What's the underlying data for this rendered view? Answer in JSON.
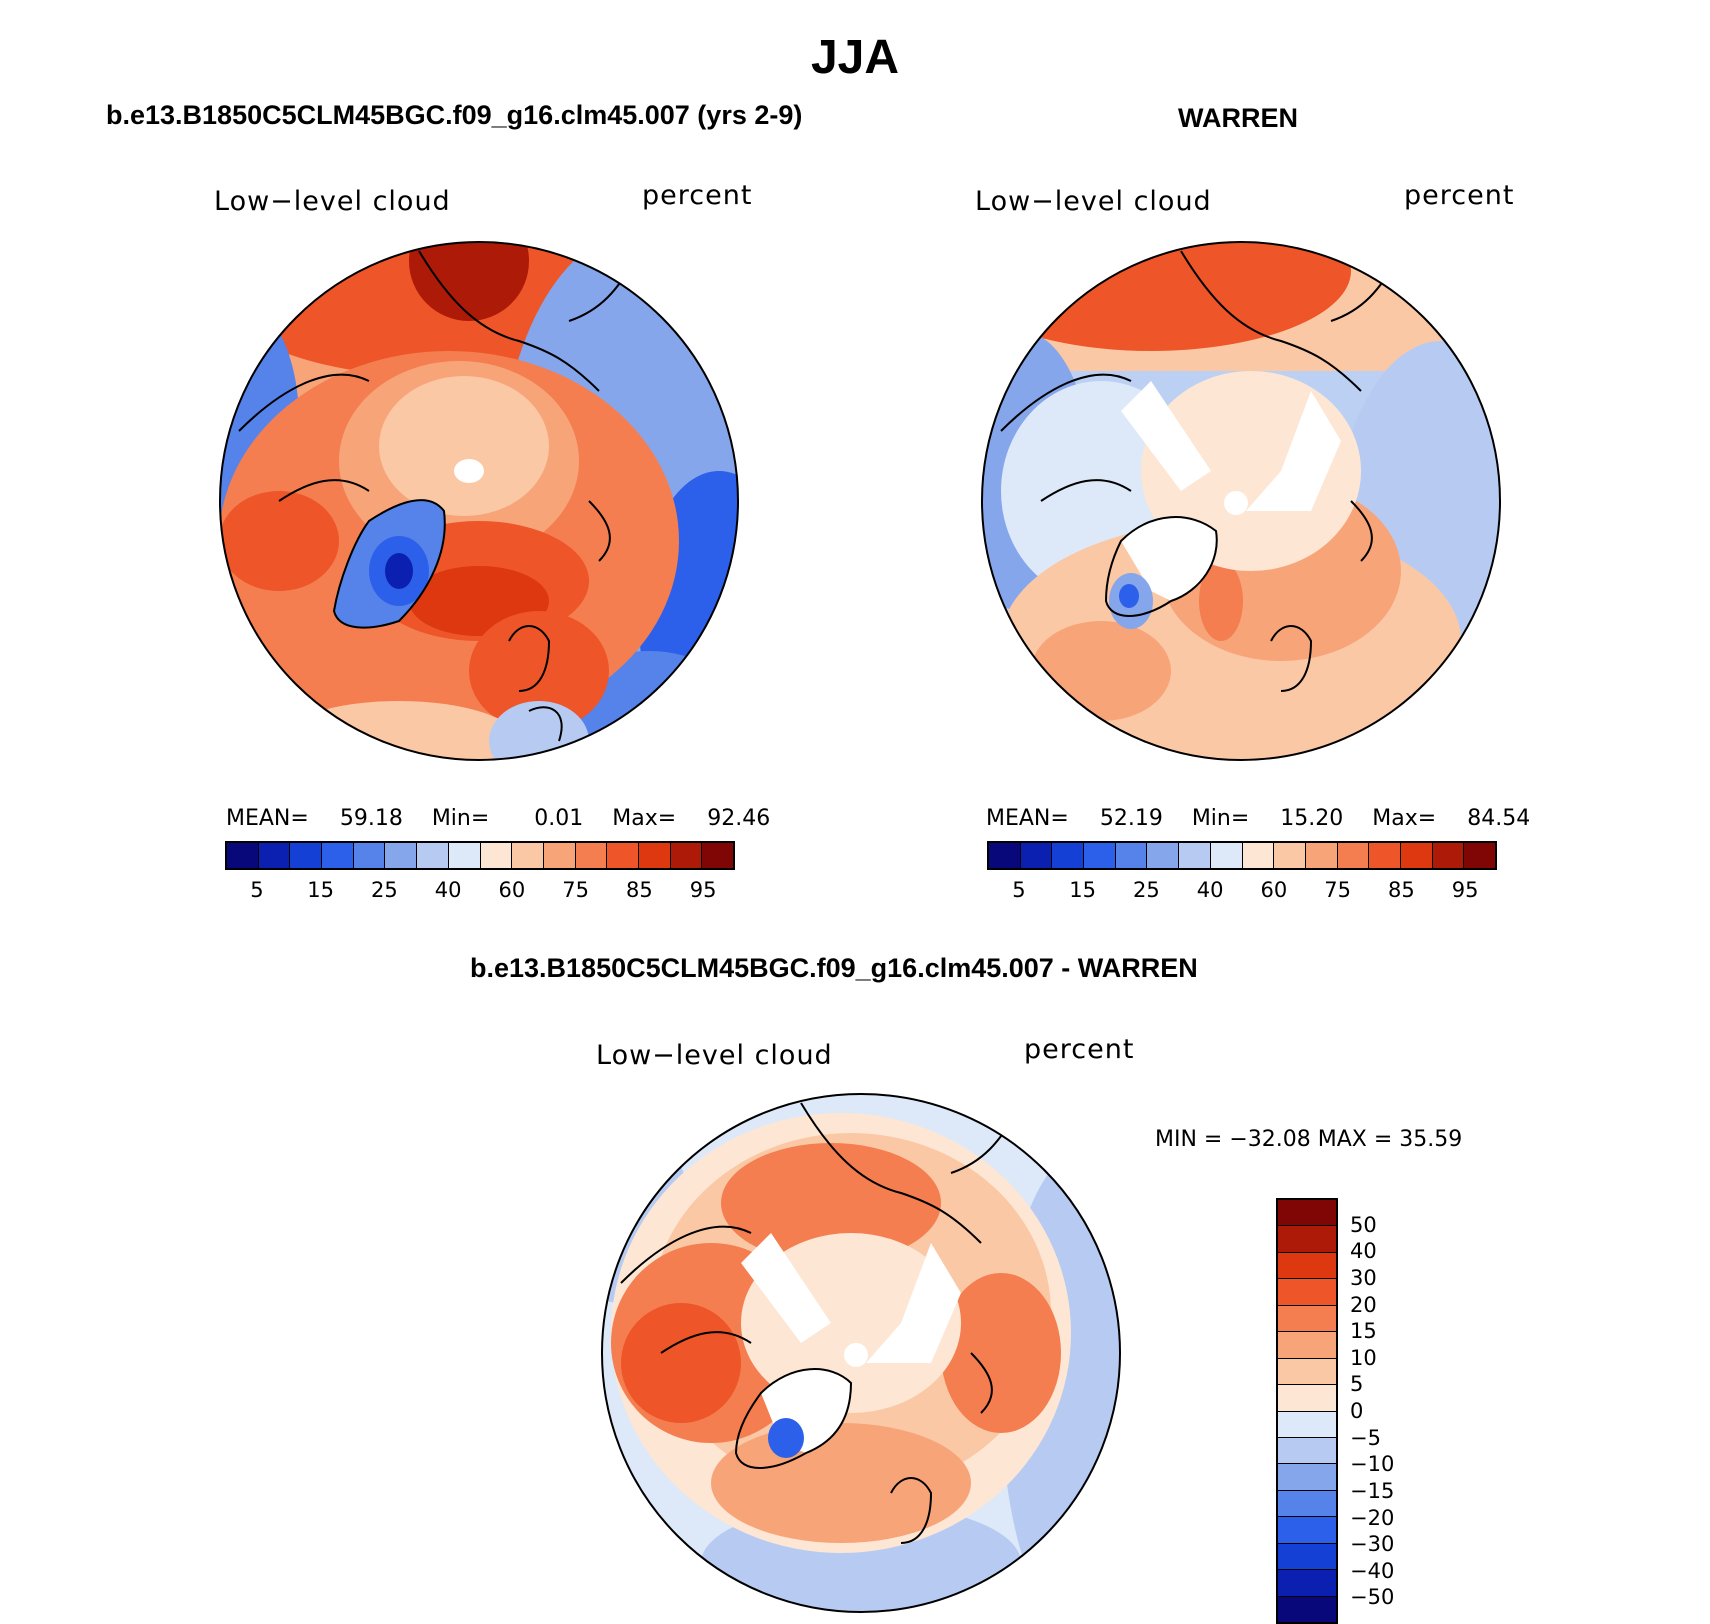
{
  "page_title": "JJA",
  "panels": {
    "left": {
      "title": "b.e13.B1850C5CLM45BGC.f09_g16.clm45.007 (yrs 2-9)",
      "variable": "Low−level cloud",
      "units": "percent",
      "stats": {
        "mean_label": "MEAN=",
        "mean": "59.18",
        "min_label": "Min=",
        "min": "0.01",
        "max_label": "Max=",
        "max": "92.46"
      }
    },
    "right": {
      "title": "WARREN",
      "variable": "Low−level cloud",
      "units": "percent",
      "stats": {
        "mean_label": "MEAN=",
        "mean": "52.19",
        "min_label": "Min=",
        "min": "15.20",
        "max_label": "Max=",
        "max": "84.54"
      }
    },
    "diff": {
      "title": "b.e13.B1850C5CLM45BGC.f09_g16.clm45.007 - WARREN",
      "variable": "Low−level cloud",
      "units": "percent",
      "minmax": "MIN = −32.08 MAX =   35.59"
    }
  },
  "colorbars": {
    "absolute": {
      "colors": [
        "#08087a",
        "#0b20b0",
        "#1440d6",
        "#2c60ea",
        "#5583ea",
        "#86a6ec",
        "#b7cbf2",
        "#dde9f8",
        "#fde6d4",
        "#fbc8a6",
        "#f8a479",
        "#f47e50",
        "#ee5528",
        "#dd3810",
        "#ad1a08",
        "#7f0605"
      ],
      "tick_labels": [
        "5",
        "15",
        "25",
        "40",
        "60",
        "75",
        "85",
        "95"
      ]
    },
    "difference": {
      "colors": [
        "#7f0605",
        "#ad1a08",
        "#dd3810",
        "#ee5528",
        "#f47e50",
        "#f8a479",
        "#fbc8a6",
        "#fde6d4",
        "#dde9f8",
        "#b7cbf2",
        "#86a6ec",
        "#5583ea",
        "#2c60ea",
        "#1440d6",
        "#0b20b0",
        "#08087a"
      ],
      "tick_labels": [
        "50",
        "40",
        "30",
        "20",
        "15",
        "10",
        "5",
        "0",
        "−5",
        "−10",
        "−15",
        "−20",
        "−30",
        "−40",
        "−50"
      ]
    }
  }
}
